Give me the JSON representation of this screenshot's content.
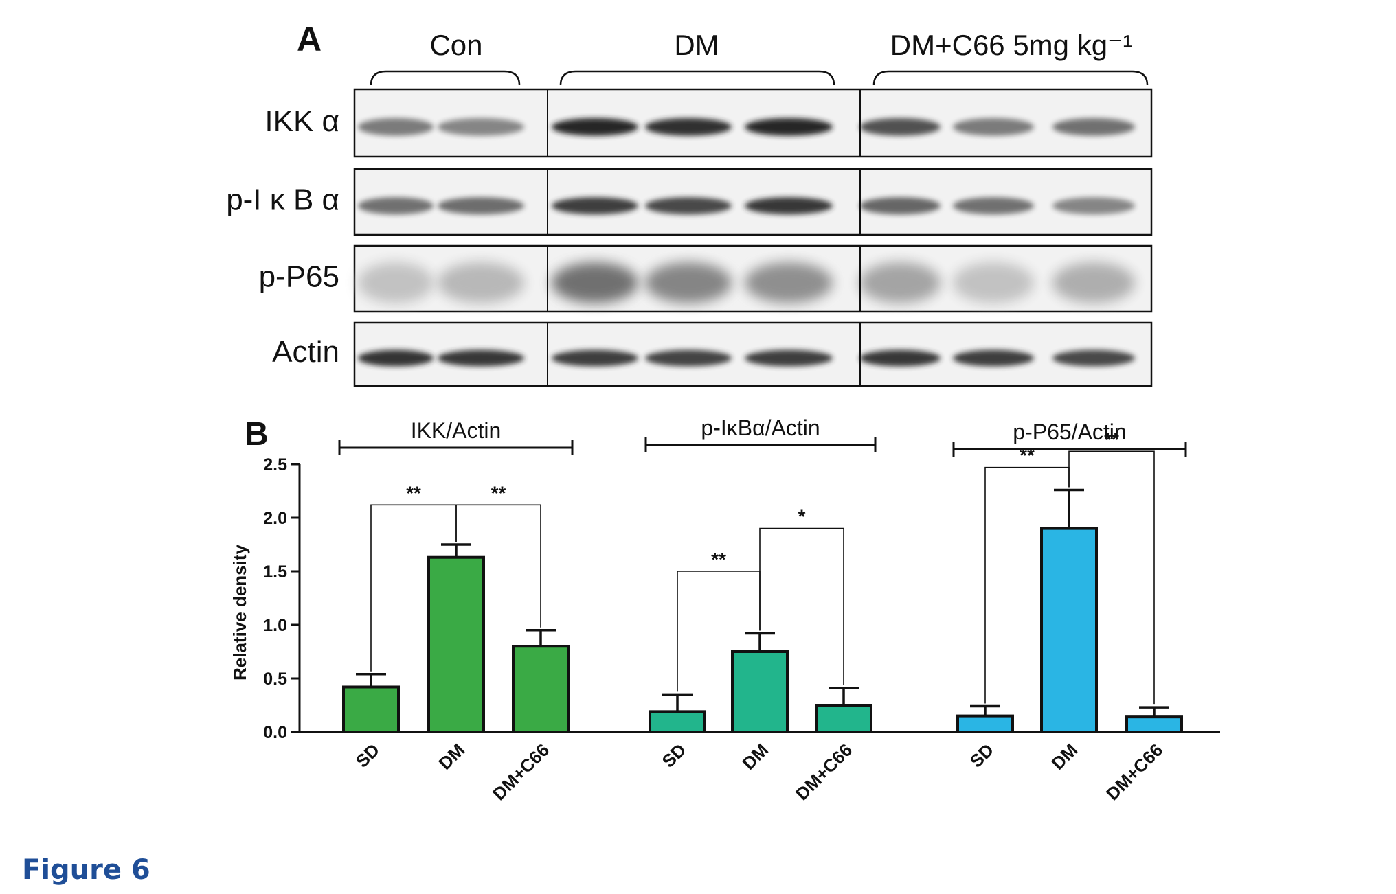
{
  "figure_label": "Figure 6",
  "panel_a": {
    "letter": "A",
    "groups": [
      "Con",
      "DM",
      "DM+C66 5mg kg⁻¹"
    ],
    "rows": [
      {
        "label": "IKK α",
        "intensities": [
          0.55,
          0.5,
          0.95,
          0.92,
          0.95,
          0.75,
          0.55,
          0.6
        ]
      },
      {
        "label": "p-I κ B α",
        "intensities": [
          0.6,
          0.62,
          0.85,
          0.8,
          0.88,
          0.65,
          0.6,
          0.5
        ]
      },
      {
        "label": "p-P65",
        "intensities": [
          0.2,
          0.25,
          0.6,
          0.5,
          0.45,
          0.35,
          0.2,
          0.3
        ]
      },
      {
        "label": "Actin",
        "intensities": [
          0.9,
          0.88,
          0.85,
          0.82,
          0.85,
          0.88,
          0.85,
          0.8
        ]
      }
    ]
  },
  "chart_data": {
    "type": "bar",
    "letter": "B",
    "ylabel": "Relative density",
    "ylim": [
      0,
      2.5
    ],
    "yticks": [
      "0.0",
      "0.5",
      "1.0",
      "1.5",
      "2.0",
      "2.5"
    ],
    "categories": [
      "SD",
      "DM",
      "DM+C66"
    ],
    "groups": [
      {
        "name": "IKK/Actin",
        "color": "#3aaa45",
        "values": [
          0.42,
          1.63,
          0.8
        ],
        "errors": [
          0.12,
          0.12,
          0.15
        ],
        "brackets": [
          {
            "from": 0,
            "to": 1,
            "y": 2.12,
            "label": "**"
          },
          {
            "from": 1,
            "to": 2,
            "y": 2.12,
            "label": "**"
          }
        ]
      },
      {
        "name": "p-IκBα/Actin",
        "color": "#22b58c",
        "values": [
          0.19,
          0.75,
          0.25
        ],
        "errors": [
          0.16,
          0.17,
          0.16
        ],
        "brackets": [
          {
            "from": 0,
            "to": 1,
            "y": 1.5,
            "label": "**"
          },
          {
            "from": 1,
            "to": 2,
            "y": 1.9,
            "label": "*"
          }
        ]
      },
      {
        "name": "p-P65/Actin",
        "color": "#2ab5e4",
        "values": [
          0.15,
          1.9,
          0.14
        ],
        "errors": [
          0.09,
          0.36,
          0.09
        ],
        "brackets": [
          {
            "from": 0,
            "to": 1,
            "y": 2.47,
            "label": "**"
          },
          {
            "from": 1,
            "to": 2,
            "y": 2.62,
            "label": "**"
          }
        ]
      }
    ]
  }
}
